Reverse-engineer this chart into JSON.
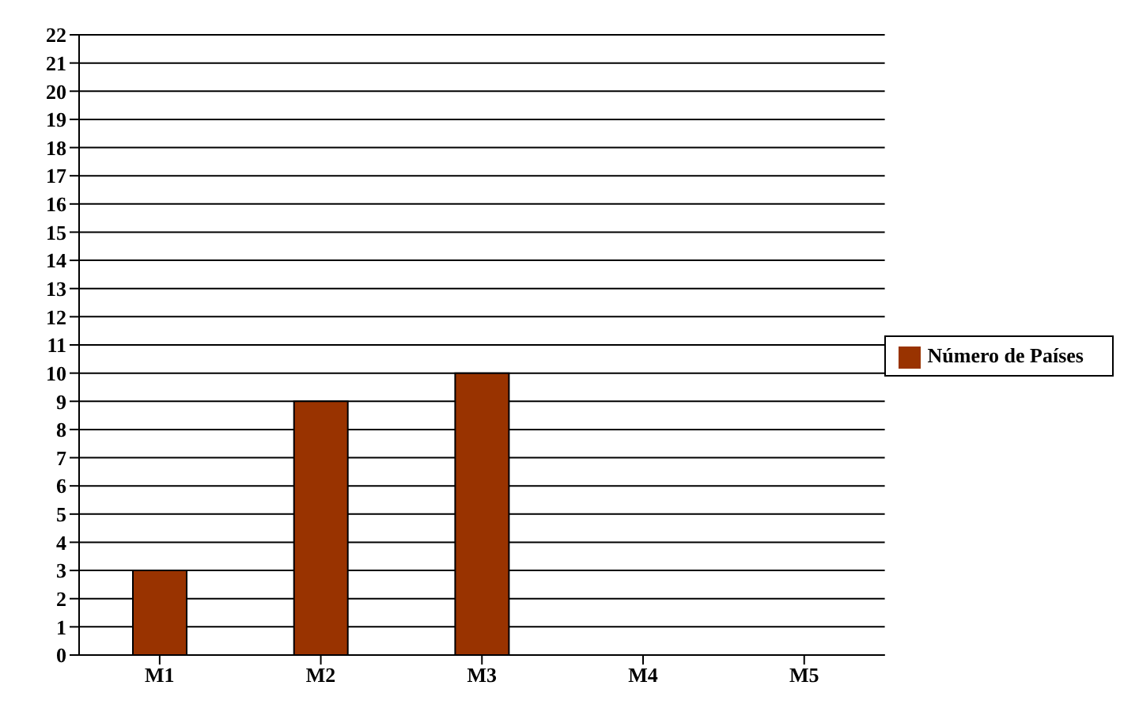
{
  "chart_data": {
    "type": "bar",
    "categories": [
      "M1",
      "M2",
      "M3",
      "M4",
      "M5"
    ],
    "series": [
      {
        "name": "Número de Países",
        "color": "#993300",
        "values": [
          3,
          9,
          10,
          0,
          0
        ]
      }
    ],
    "ylim": [
      0,
      22
    ],
    "yticks": [
      0,
      1,
      2,
      3,
      4,
      5,
      6,
      7,
      8,
      9,
      10,
      11,
      12,
      13,
      14,
      15,
      16,
      17,
      18,
      19,
      20,
      21,
      22
    ],
    "grid": "y",
    "legend": "right"
  }
}
